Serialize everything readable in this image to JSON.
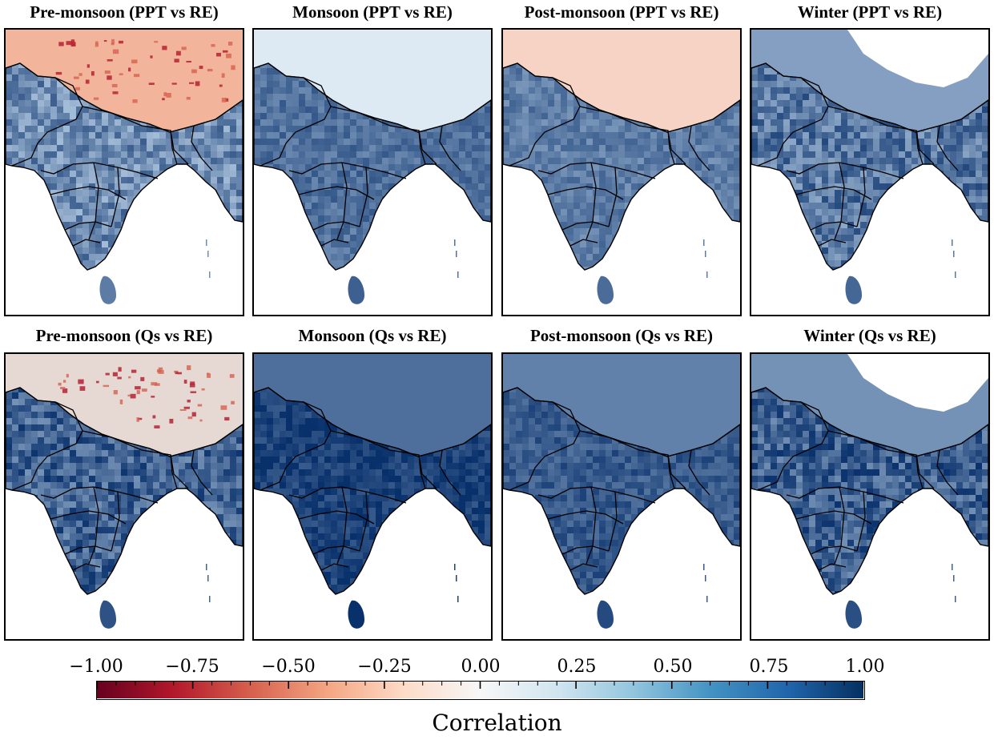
{
  "panels": [
    {
      "title": "Pre-monsoon (PPT vs RE)",
      "hue": 0.46,
      "himalaya": "red",
      "speckle": true
    },
    {
      "title": "Monsoon (PPT vs RE)",
      "hue": 0.62,
      "himalaya": "light",
      "speckle": false
    },
    {
      "title": "Post-monsoon (PPT vs RE)",
      "hue": 0.55,
      "himalaya": "pink",
      "speckle": false
    },
    {
      "title": "Winter (PPT vs RE)",
      "hue": 0.58,
      "himalaya": "blank",
      "speckle": true
    },
    {
      "title": "Pre-monsoon (Qs vs RE)",
      "hue": 0.7,
      "himalaya": "mixed",
      "speckle": true
    },
    {
      "title": "Monsoon (Qs vs RE)",
      "hue": 0.9,
      "himalaya": "dark",
      "speckle": false
    },
    {
      "title": "Post-monsoon (Qs vs RE)",
      "hue": 0.75,
      "himalaya": "dark",
      "speckle": false
    },
    {
      "title": "Winter (Qs vs RE)",
      "hue": 0.72,
      "himalaya": "blank",
      "speckle": true
    }
  ],
  "colorbar": {
    "label": "Correlation",
    "ticks": [
      "−1.00",
      "−0.75",
      "−0.50",
      "−0.25",
      "0.00",
      "0.25",
      "0.50",
      "0.75",
      "1.00"
    ],
    "range": [
      -1.0,
      1.0
    ],
    "colors": [
      "#67001f",
      "#b2182b",
      "#d6604d",
      "#f4a582",
      "#fddbc7",
      "#f7f7f7",
      "#d1e5f0",
      "#92c5de",
      "#4393c3",
      "#2166ac",
      "#053061"
    ]
  }
}
